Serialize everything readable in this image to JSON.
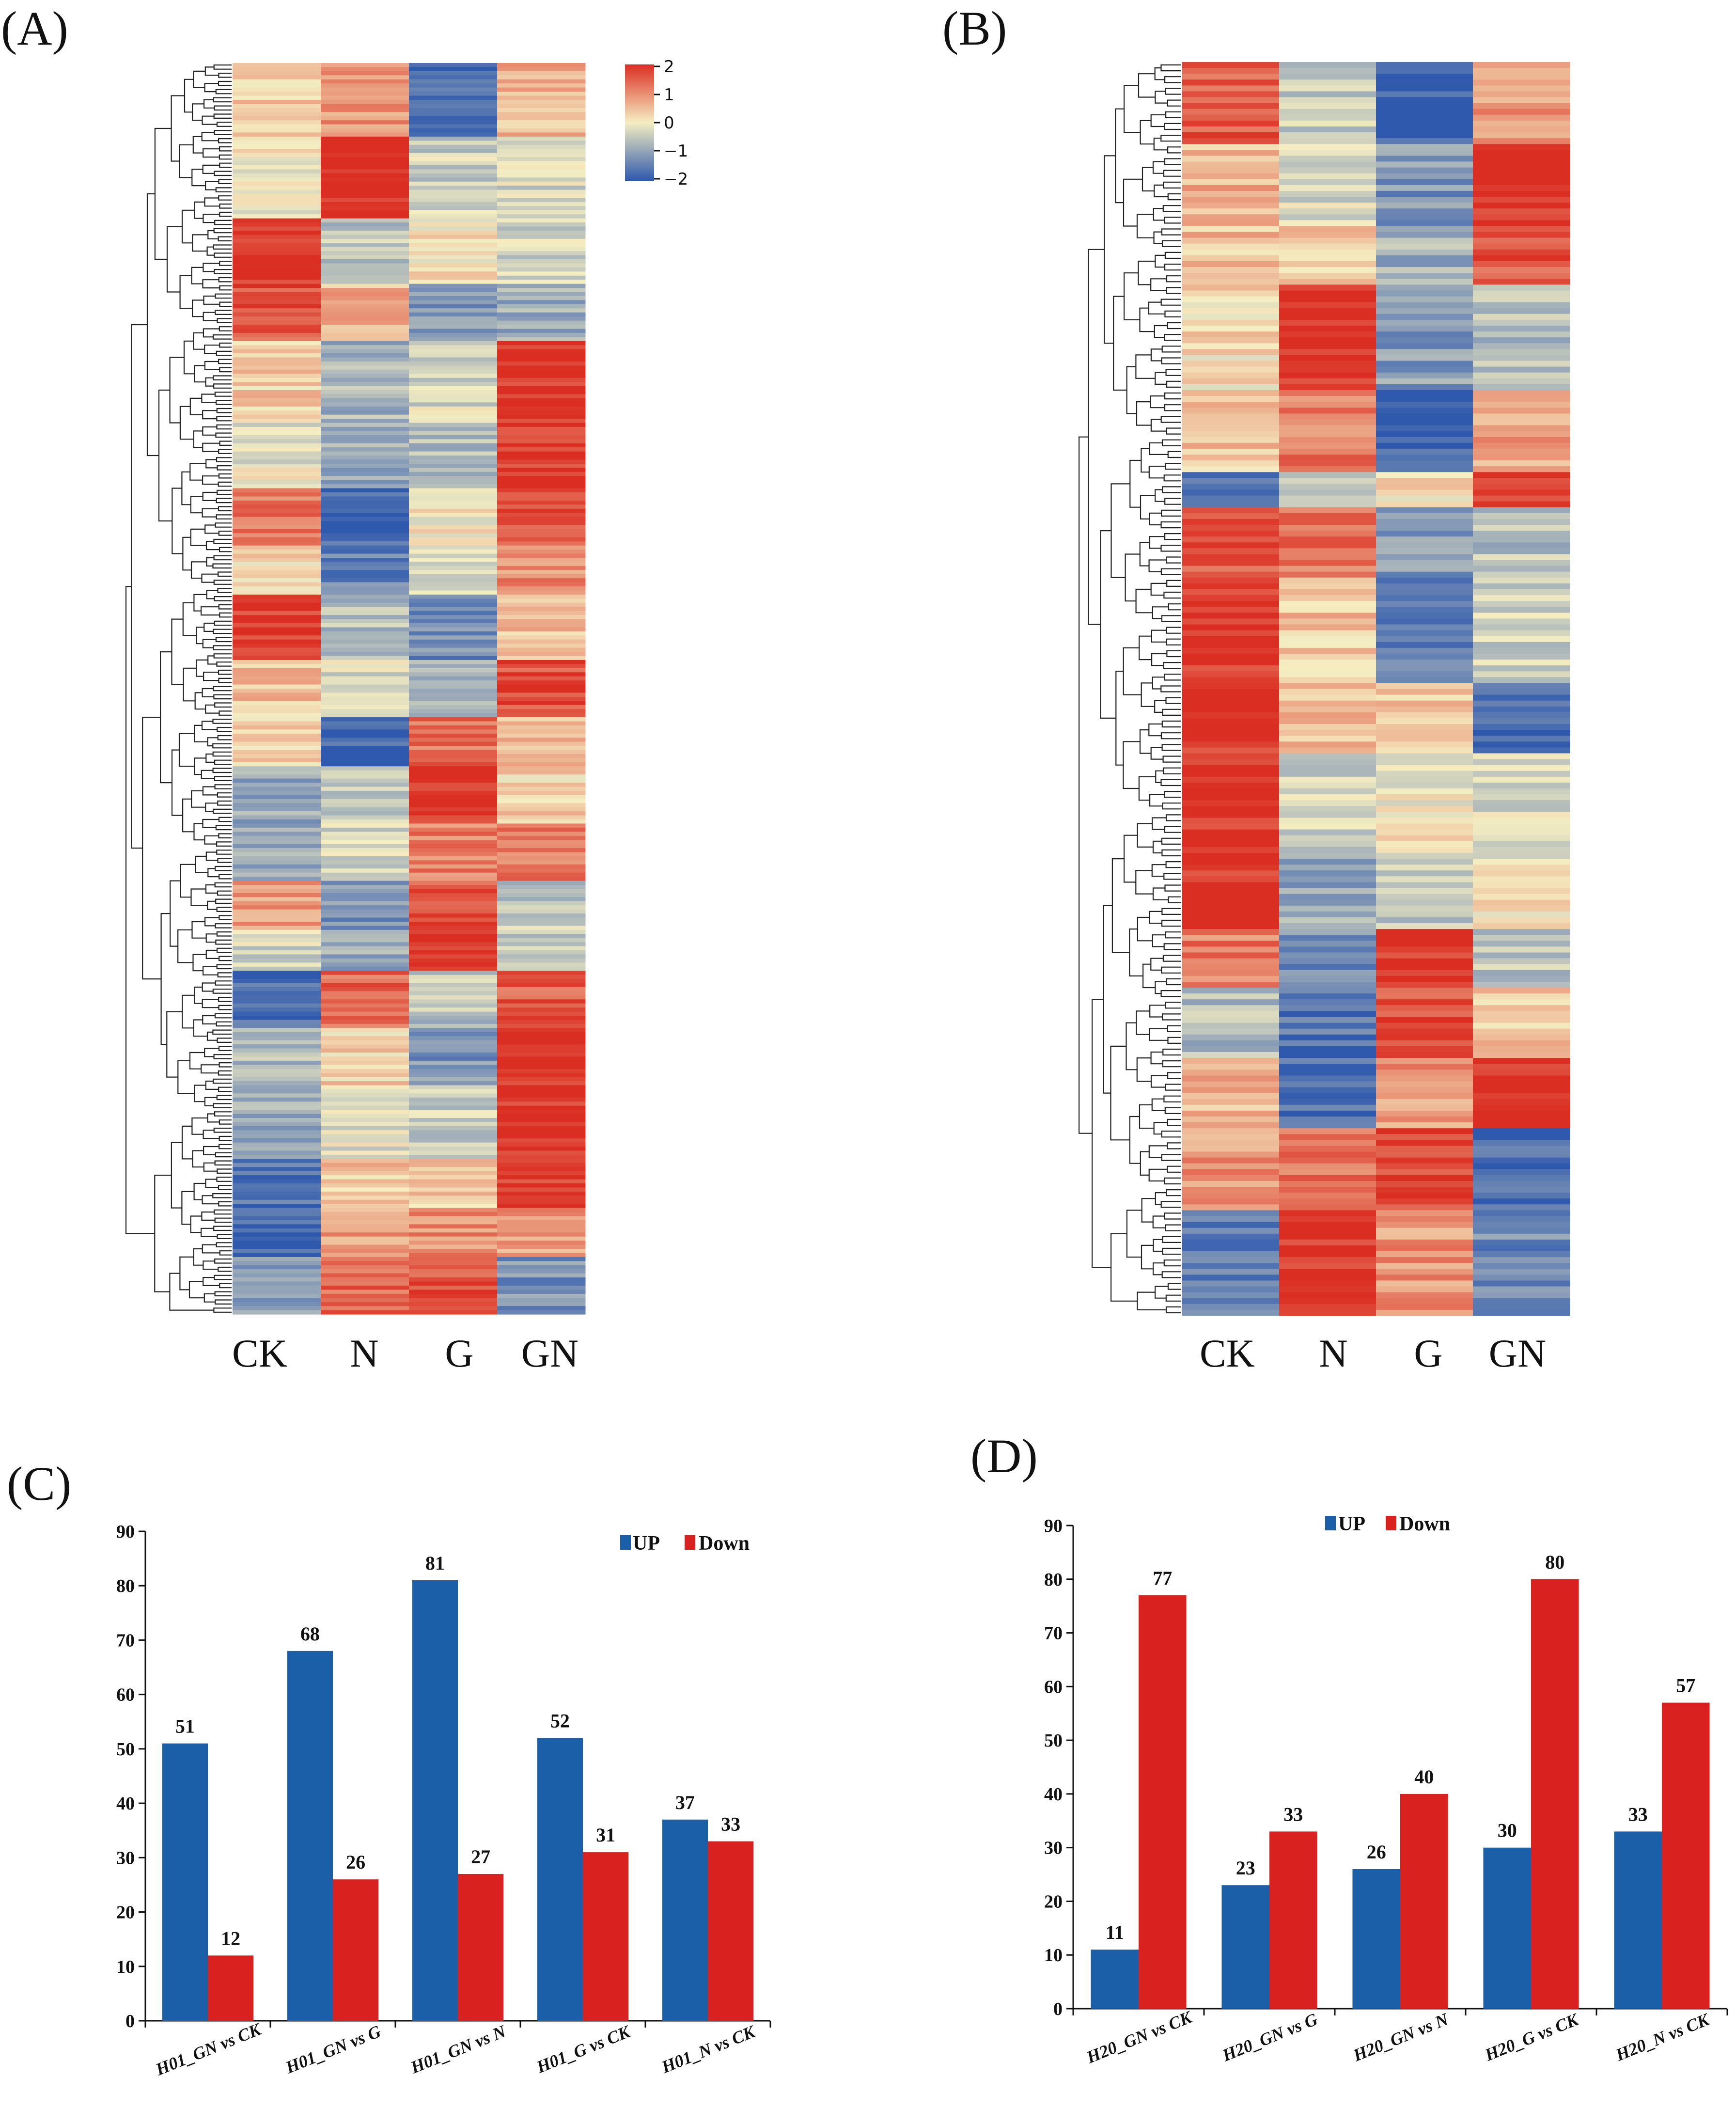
{
  "colors": {
    "up": "#1a5fa8",
    "down": "#d92120",
    "heat_low": "#2f59ad",
    "heat_mid": "#f5eec2",
    "heat_high": "#db2e22",
    "axis": "#111111",
    "dendrogram": "#222222"
  },
  "chart_data": [
    {
      "panel": "(A)",
      "type": "heatmap",
      "columns": [
        "CK",
        "N",
        "G",
        "GN"
      ],
      "colorbar": {
        "ticks": [
          "2",
          "1",
          "0",
          "−1",
          "−2"
        ],
        "range": [
          -2,
          2
        ]
      },
      "blocks": [
        {
          "rows": 18,
          "values": [
            0.3,
            0.9,
            -1.8,
            0.6
          ]
        },
        {
          "rows": 20,
          "values": [
            0.0,
            2.0,
            -0.4,
            -0.3
          ]
        },
        {
          "rows": 16,
          "values": [
            2.0,
            -0.5,
            0.1,
            -0.4
          ]
        },
        {
          "rows": 14,
          "values": [
            1.6,
            0.6,
            -1.1,
            -0.9
          ]
        },
        {
          "rows": 20,
          "values": [
            0.3,
            -0.8,
            -0.3,
            2.0
          ]
        },
        {
          "rows": 16,
          "values": [
            -0.1,
            -0.9,
            -0.6,
            1.9
          ]
        },
        {
          "rows": 14,
          "values": [
            1.2,
            -1.8,
            0.0,
            1.5
          ]
        },
        {
          "rows": 12,
          "values": [
            0.3,
            -1.4,
            -0.4,
            1.0
          ]
        },
        {
          "rows": 16,
          "values": [
            1.8,
            -0.6,
            -1.3,
            0.4
          ]
        },
        {
          "rows": 14,
          "values": [
            0.4,
            -0.3,
            -0.9,
            1.7
          ]
        },
        {
          "rows": 12,
          "values": [
            0.2,
            -1.9,
            1.3,
            0.6
          ]
        },
        {
          "rows": 14,
          "values": [
            -0.9,
            -0.5,
            2.0,
            0.3
          ]
        },
        {
          "rows": 14,
          "values": [
            -0.8,
            -0.3,
            1.2,
            1.3
          ]
        },
        {
          "rows": 12,
          "values": [
            0.8,
            -1.2,
            1.6,
            -0.5
          ]
        },
        {
          "rows": 10,
          "values": [
            -0.3,
            -0.9,
            2.0,
            -0.4
          ]
        },
        {
          "rows": 14,
          "values": [
            -1.8,
            1.4,
            -0.6,
            1.5
          ]
        },
        {
          "rows": 14,
          "values": [
            -0.6,
            0.3,
            -1.2,
            1.9
          ]
        },
        {
          "rows": 18,
          "values": [
            -0.9,
            -0.2,
            -0.4,
            2.0
          ]
        },
        {
          "rows": 12,
          "values": [
            -1.7,
            0.4,
            0.3,
            1.9
          ]
        },
        {
          "rows": 12,
          "values": [
            -1.9,
            0.8,
            1.0,
            0.9
          ]
        },
        {
          "rows": 14,
          "values": [
            -1.1,
            1.4,
            1.6,
            -1.2
          ]
        }
      ]
    },
    {
      "panel": "(B)",
      "type": "heatmap",
      "columns": [
        "CK",
        "N",
        "G",
        "GN"
      ],
      "blocks": [
        {
          "rows": 14,
          "values": [
            1.5,
            -0.5,
            -1.9,
            0.9
          ]
        },
        {
          "rows": 14,
          "values": [
            0.6,
            -0.3,
            -1.2,
            2.0
          ]
        },
        {
          "rows": 10,
          "values": [
            0.5,
            0.4,
            -0.8,
            1.6
          ]
        },
        {
          "rows": 18,
          "values": [
            0.2,
            2.0,
            -1.1,
            -0.7
          ]
        },
        {
          "rows": 14,
          "values": [
            0.4,
            1.2,
            -1.9,
            0.8
          ]
        },
        {
          "rows": 6,
          "values": [
            -1.8,
            -0.7,
            0.2,
            1.9
          ]
        },
        {
          "rows": 12,
          "values": [
            1.6,
            1.3,
            -1.1,
            -0.6
          ]
        },
        {
          "rows": 18,
          "values": [
            1.9,
            0.4,
            -1.5,
            -0.4
          ]
        },
        {
          "rows": 12,
          "values": [
            1.9,
            0.6,
            0.4,
            -1.8
          ]
        },
        {
          "rows": 18,
          "values": [
            2.0,
            -0.4,
            0.0,
            -0.3
          ]
        },
        {
          "rows": 12,
          "values": [
            2.0,
            -0.9,
            -0.6,
            0.2
          ]
        },
        {
          "rows": 10,
          "values": [
            1.2,
            -1.3,
            2.0,
            -0.5
          ]
        },
        {
          "rows": 12,
          "values": [
            -0.7,
            -1.6,
            1.6,
            0.4
          ]
        },
        {
          "rows": 12,
          "values": [
            0.6,
            -1.7,
            0.9,
            2.0
          ]
        },
        {
          "rows": 14,
          "values": [
            0.9,
            1.3,
            1.8,
            -1.8
          ]
        },
        {
          "rows": 18,
          "values": [
            -1.5,
            1.9,
            0.9,
            -1.3
          ]
        }
      ]
    },
    {
      "panel": "(C)",
      "type": "bar",
      "categories": [
        "H01_GN vs CK",
        "H01_GN vs G",
        "H01_GN vs N",
        "H01_G vs CK",
        "H01_N vs CK"
      ],
      "series": [
        {
          "name": "UP",
          "values": [
            51,
            68,
            81,
            52,
            37
          ]
        },
        {
          "name": "Down",
          "values": [
            12,
            26,
            27,
            31,
            33
          ]
        }
      ],
      "ylim": [
        0,
        90
      ],
      "yticks": [
        0,
        10,
        20,
        30,
        40,
        50,
        60,
        70,
        80,
        90
      ],
      "legend": "top-right"
    },
    {
      "panel": "(D)",
      "type": "bar",
      "categories": [
        "H20_GN vs CK",
        "H20_GN vs G",
        "H20_GN vs N",
        "H20_G vs CK",
        "H20_N vs CK"
      ],
      "series": [
        {
          "name": "UP",
          "values": [
            11,
            23,
            26,
            30,
            33
          ]
        },
        {
          "name": "Down",
          "values": [
            77,
            33,
            40,
            80,
            57
          ]
        }
      ],
      "ylim": [
        0,
        90
      ],
      "yticks": [
        0,
        10,
        20,
        30,
        40,
        50,
        60,
        70,
        80,
        90
      ],
      "legend": "top-center"
    }
  ]
}
